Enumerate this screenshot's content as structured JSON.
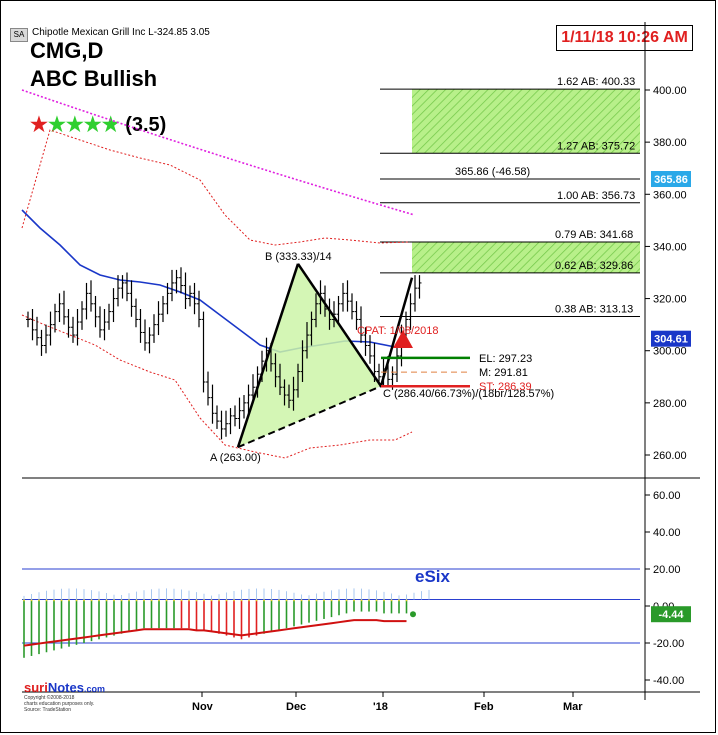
{
  "header": {
    "badge": "SA",
    "title": "Chipotle Mexican Grill Inc  L-324.85  3.05",
    "timestamp": "1/11/18 10:26 AM",
    "symbol": "CMG,D",
    "pattern": "ABC Bullish",
    "rating_score": "(3.5)",
    "rating_stars_red": 1,
    "rating_stars_green": 4
  },
  "esix_label": "eSix",
  "logo": {
    "brand_a": "suri",
    "brand_b": "Notes",
    "brand_c": ".com",
    "line1": "Copyright ©2008-2018",
    "line2": "charts education purposes only.",
    "line3": "Source: TradeStation"
  },
  "colors": {
    "price_up": "#000000",
    "ma_blue": "#1a37c8",
    "ma_magenta": "#e020e0",
    "band_red": "#e02020",
    "pattern_fill": "#ccf5a8",
    "zone_fill": "#9be86a",
    "entry_green": "#008000",
    "stop_red": "#e02020"
  },
  "chart_data": [
    {
      "type": "line",
      "name": "price",
      "y_axis_ticks": [
        "400.00",
        "380.00",
        "360.00",
        "340.00",
        "320.00",
        "300.00",
        "280.00",
        "260.00"
      ],
      "ylim": [
        252,
        412
      ],
      "x_axis_labels": [
        "Nov",
        "Dec",
        "'18",
        "Feb",
        "Mar"
      ],
      "last_price_label": "304.61",
      "current_label": "365.86",
      "pattern_points": [
        {
          "label": "A (263.00)",
          "value": 263.0
        },
        {
          "label": "B (333.33)/14",
          "value": 333.33
        },
        {
          "label": "C (286.40/66.73%)/(18br/128.57%)",
          "value": 286.4
        }
      ],
      "fib_levels": [
        {
          "label": "1.62 AB: 400.33",
          "value": 400.33
        },
        {
          "label": "1.27 AB: 375.72",
          "value": 375.72
        },
        {
          "label": "365.86 (-46.58)",
          "value": 365.86
        },
        {
          "label": "1.00 AB: 356.73",
          "value": 356.73
        },
        {
          "label": "0.79 AB: 341.68",
          "value": 341.68
        },
        {
          "label": "0.62 AB: 329.86",
          "value": 329.86
        },
        {
          "label": "0.38 AB: 313.13",
          "value": 313.13
        }
      ],
      "trade_levels": [
        {
          "label": "EL: 297.23",
          "value": 297.23
        },
        {
          "label": "M: 291.81",
          "value": 291.81
        },
        {
          "label": "ST: 286.39",
          "value": 286.39
        }
      ],
      "cpat_label": "CPAT: 1/08/2018",
      "ohlc_close_series": [
        312,
        308,
        305,
        302,
        306,
        310,
        315,
        318,
        313,
        309,
        306,
        311,
        316,
        322,
        318,
        313,
        308,
        311,
        315,
        320,
        324,
        326,
        322,
        317,
        312,
        307,
        303,
        306,
        310,
        314,
        318,
        322,
        326,
        328,
        325,
        320,
        322,
        318,
        312,
        288,
        282,
        276,
        273,
        270,
        272,
        275,
        274,
        277,
        280,
        283,
        286,
        291,
        296,
        300,
        295,
        290,
        286,
        283,
        281,
        285,
        292,
        300,
        306,
        312,
        318,
        322,
        316,
        312,
        314,
        318,
        322,
        319,
        315,
        312,
        306,
        302,
        298,
        292,
        290,
        293,
        289,
        291,
        298,
        305,
        312,
        318,
        324,
        326
      ]
    },
    {
      "type": "bar",
      "name": "eSix",
      "y_axis_ticks": [
        "60.00",
        "40.00",
        "20.00",
        "0.00",
        "-20.00",
        "-40.00"
      ],
      "ylim": [
        -45,
        68
      ],
      "last_value_label": "-4.44",
      "hist_values": [
        -28,
        -27,
        -26,
        -25,
        -24,
        -23,
        -22,
        -21,
        -20,
        -19,
        -18,
        -17,
        -16,
        -15,
        -14,
        -13,
        -12,
        -12,
        -12,
        -12,
        -12,
        -12,
        -12,
        -13,
        -13,
        -14,
        -15,
        -16,
        -17,
        -18,
        -17,
        -16,
        -15,
        -14,
        -13,
        -12,
        -11,
        -10,
        -9,
        -8,
        -7,
        -6,
        -5,
        -4,
        -3,
        -3,
        -3,
        -3,
        -4,
        -4,
        -4,
        -4
      ],
      "hist_colors_note": "green up / red down"
    }
  ]
}
